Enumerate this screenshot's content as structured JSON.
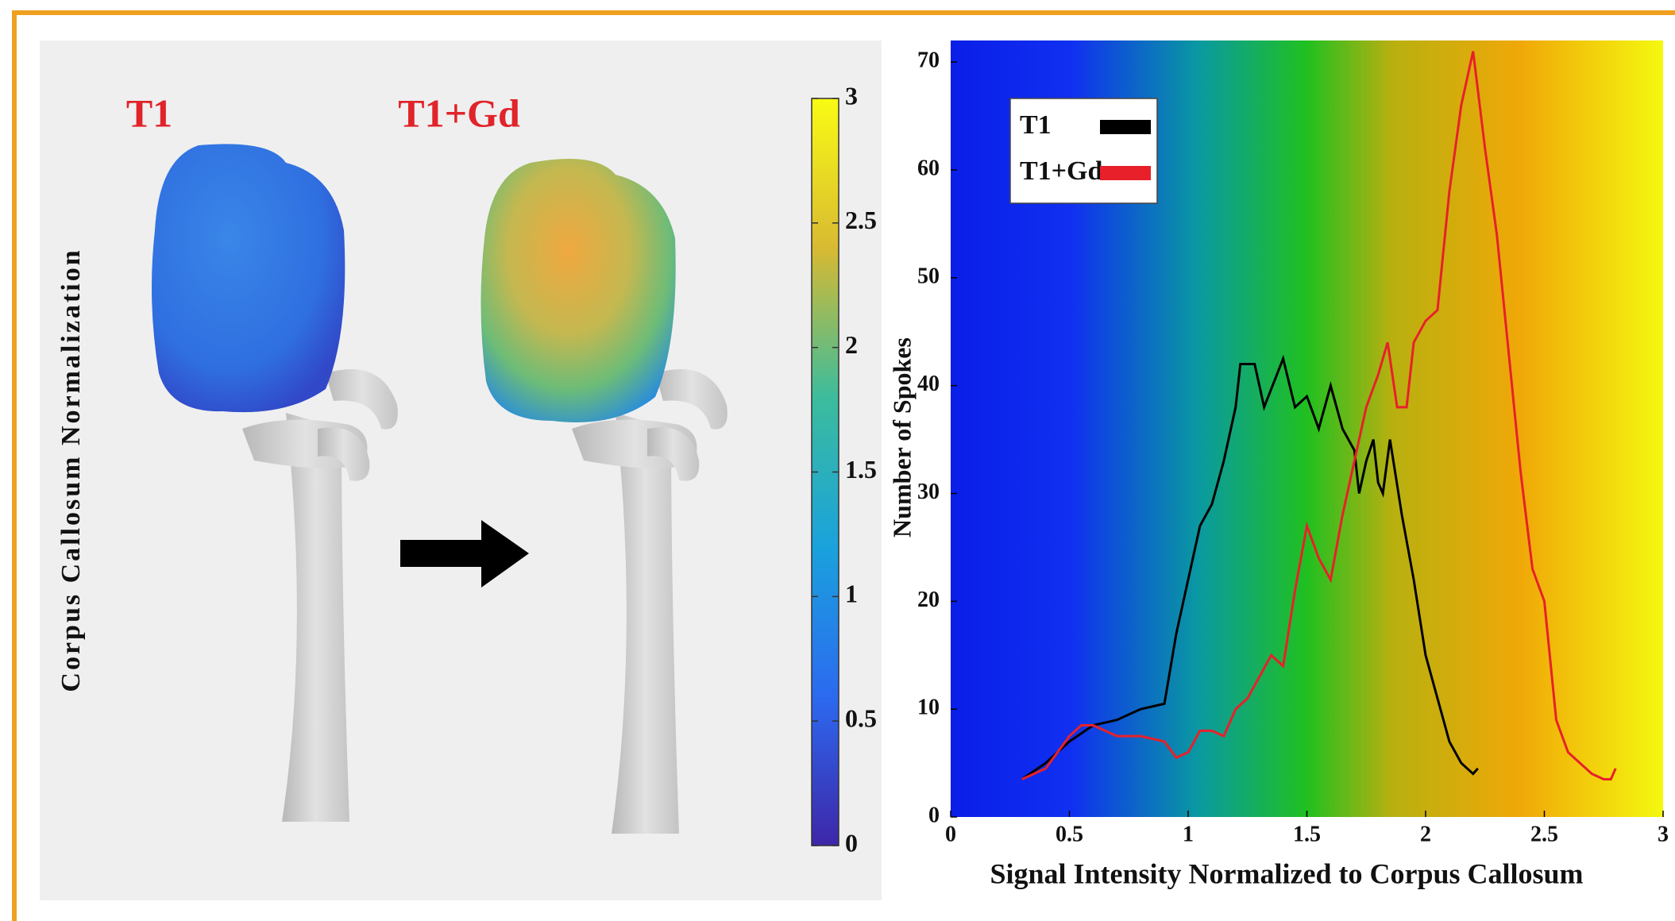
{
  "chart_data": [
    {
      "type": "colorbar",
      "ylabel": "Corpus Callosum Normalization",
      "annotations": [
        "T1",
        "T1+Gd"
      ],
      "ylim": [
        0,
        3
      ],
      "yticks": [
        0,
        0.5,
        1,
        1.5,
        2,
        2.5,
        3
      ]
    },
    {
      "type": "line",
      "xlabel": "Signal Intensity Normalized to Corpus Callosum",
      "ylabel": "Number of Spokes",
      "xlim": [
        0,
        3
      ],
      "xticks": [
        0,
        0.5,
        1,
        1.5,
        2,
        2.5,
        3
      ],
      "ylim": [
        0,
        72
      ],
      "yticks": [
        0,
        10,
        20,
        30,
        40,
        50,
        60,
        70
      ],
      "legend": "upper-left",
      "series": [
        {
          "name": "T1",
          "color": "#000000",
          "x": [
            0.3,
            0.4,
            0.5,
            0.6,
            0.7,
            0.8,
            0.9,
            0.95,
            1.0,
            1.05,
            1.1,
            1.15,
            1.2,
            1.22,
            1.28,
            1.32,
            1.4,
            1.45,
            1.5,
            1.55,
            1.6,
            1.65,
            1.7,
            1.72,
            1.75,
            1.78,
            1.8,
            1.82,
            1.85,
            1.9,
            1.95,
            2.0,
            2.05,
            2.1,
            2.15,
            2.2,
            2.22
          ],
          "values": [
            3.5,
            5,
            7,
            8.5,
            9,
            10,
            10.5,
            17,
            22,
            27,
            29,
            33,
            38,
            42,
            42,
            38,
            42.5,
            38,
            39,
            36,
            40,
            36,
            34,
            30,
            33,
            35,
            31,
            30,
            35,
            28,
            22,
            15,
            11,
            7,
            5,
            4,
            4.5
          ]
        },
        {
          "name": "T1+Gd",
          "color": "#e8202a",
          "x": [
            0.3,
            0.4,
            0.5,
            0.55,
            0.6,
            0.7,
            0.8,
            0.9,
            0.95,
            1.0,
            1.05,
            1.1,
            1.15,
            1.2,
            1.25,
            1.3,
            1.35,
            1.4,
            1.45,
            1.5,
            1.55,
            1.6,
            1.65,
            1.7,
            1.75,
            1.8,
            1.84,
            1.88,
            1.92,
            1.95,
            2.0,
            2.05,
            2.1,
            2.15,
            2.2,
            2.25,
            2.3,
            2.35,
            2.4,
            2.45,
            2.5,
            2.55,
            2.6,
            2.65,
            2.7,
            2.75,
            2.78,
            2.8
          ],
          "values": [
            3.5,
            4.5,
            7.5,
            8.5,
            8.5,
            7.5,
            7.5,
            7,
            5.5,
            6,
            8,
            8,
            7.5,
            10,
            11,
            13,
            15,
            14,
            21,
            27,
            24,
            22,
            28,
            33,
            38,
            41,
            44,
            38,
            38,
            44,
            46,
            47,
            58,
            66,
            71,
            62,
            54,
            43,
            32,
            23,
            20,
            9,
            6,
            5,
            4,
            3.5,
            3.5,
            4.5
          ]
        }
      ]
    }
  ]
}
